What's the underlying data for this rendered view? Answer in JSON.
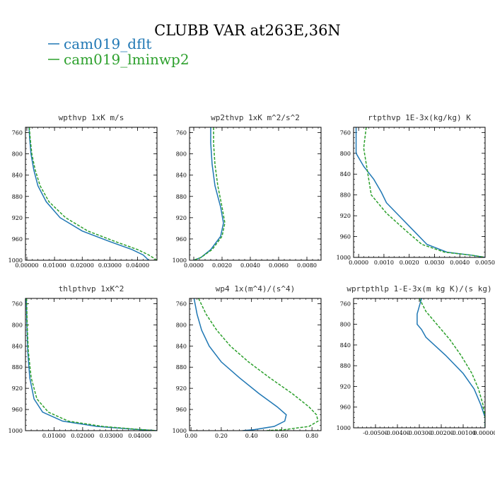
{
  "figure": {
    "title": "CLUBB VAR at263E,36N",
    "legend": [
      {
        "label": "cam019_dflt",
        "color": "#1f77b4"
      },
      {
        "label": "cam019_lminwp2",
        "color": "#2ca02c"
      }
    ]
  },
  "chart_data": [
    {
      "type": "line",
      "title": "wpthvp  1xK m/s",
      "xlim": [
        -0.0005,
        0.047
      ],
      "ylim": [
        1000,
        750
      ],
      "x_ticks": [
        0.0,
        0.01,
        0.02,
        0.03,
        0.04
      ],
      "x_tick_labels": [
        "0.00000",
        "0.01000",
        "0.02000",
        "0.03000",
        "0.04000"
      ],
      "y_ticks": [
        760,
        800,
        840,
        880,
        920,
        960,
        1000
      ],
      "y_tick_labels": [
        "760",
        "800",
        "840",
        "880",
        "920",
        "960",
        "1000"
      ],
      "series": [
        {
          "name": "cam019_dflt",
          "color": "#1f77b4",
          "dash": "",
          "points": [
            [
              0.0008,
              750
            ],
            [
              0.001,
              770
            ],
            [
              0.0015,
              800
            ],
            [
              0.0025,
              830
            ],
            [
              0.004,
              860
            ],
            [
              0.007,
              890
            ],
            [
              0.012,
              920
            ],
            [
              0.02,
              945
            ],
            [
              0.03,
              965
            ],
            [
              0.038,
              980
            ],
            [
              0.042,
              990
            ],
            [
              0.044,
              1000
            ]
          ]
        },
        {
          "name": "cam019_lminwp2",
          "color": "#2ca02c",
          "dash": "4,2",
          "points": [
            [
              0.0009,
              750
            ],
            [
              0.0012,
              770
            ],
            [
              0.0018,
              800
            ],
            [
              0.003,
              830
            ],
            [
              0.0048,
              860
            ],
            [
              0.008,
              890
            ],
            [
              0.014,
              920
            ],
            [
              0.022,
              945
            ],
            [
              0.032,
              965
            ],
            [
              0.04,
              980
            ],
            [
              0.044,
              990
            ],
            [
              0.047,
              1000
            ]
          ]
        }
      ]
    },
    {
      "type": "line",
      "title": "wp2thvp  1xK m^2/s^2",
      "xlim": [
        -0.0003,
        0.009
      ],
      "ylim": [
        1000,
        750
      ],
      "x_ticks": [
        0.0,
        0.002,
        0.004,
        0.006,
        0.008
      ],
      "x_tick_labels": [
        "0.0000",
        "0.0020",
        "0.0040",
        "0.0060",
        "0.0080"
      ],
      "y_ticks": [
        760,
        800,
        840,
        880,
        920,
        960,
        1000
      ],
      "y_tick_labels": [
        "760",
        "800",
        "840",
        "880",
        "920",
        "960",
        "1000"
      ],
      "series": [
        {
          "name": "cam019_dflt",
          "color": "#1f77b4",
          "dash": "",
          "points": [
            [
              0.0012,
              750
            ],
            [
              0.0012,
              780
            ],
            [
              0.0013,
              820
            ],
            [
              0.0015,
              860
            ],
            [
              0.0019,
              900
            ],
            [
              0.0021,
              930
            ],
            [
              0.0019,
              955
            ],
            [
              0.0012,
              980
            ],
            [
              0.0005,
              995
            ],
            [
              0.0,
              1000
            ]
          ]
        },
        {
          "name": "cam019_lminwp2",
          "color": "#2ca02c",
          "dash": "4,2",
          "points": [
            [
              0.0014,
              750
            ],
            [
              0.0014,
              780
            ],
            [
              0.0015,
              820
            ],
            [
              0.0017,
              860
            ],
            [
              0.002,
              900
            ],
            [
              0.0022,
              930
            ],
            [
              0.002,
              955
            ],
            [
              0.0013,
              980
            ],
            [
              0.0005,
              995
            ],
            [
              0.0,
              1000
            ]
          ]
        }
      ]
    },
    {
      "type": "line",
      "title": "rtpthvp  1E-3x(kg/kg) K",
      "xlim": [
        -0.0002,
        0.005
      ],
      "ylim": [
        1000,
        750
      ],
      "x_ticks": [
        0.0,
        0.001,
        0.002,
        0.003,
        0.004,
        0.005
      ],
      "x_tick_labels": [
        "0.0000",
        "0.0010",
        "0.0020",
        "0.0030",
        "0.0040",
        "0.0050"
      ],
      "y_ticks": [
        760,
        800,
        840,
        880,
        920,
        960,
        1000
      ],
      "y_tick_labels": [
        "760",
        "800",
        "840",
        "880",
        "920",
        "960",
        "1000"
      ],
      "series": [
        {
          "name": "cam019_dflt",
          "color": "#1f77b4",
          "dash": "",
          "points": [
            [
              -0.0001,
              750
            ],
            [
              -0.0001,
              800
            ],
            [
              0.0002,
              825
            ],
            [
              0.0006,
              850
            ],
            [
              0.0009,
              875
            ],
            [
              0.0011,
              895
            ],
            [
              0.0016,
              920
            ],
            [
              0.0022,
              950
            ],
            [
              0.0027,
              975
            ],
            [
              0.0035,
              990
            ],
            [
              0.0045,
              996
            ],
            [
              0.005,
              1000
            ]
          ]
        },
        {
          "name": "cam019_lminwp2",
          "color": "#2ca02c",
          "dash": "4,2",
          "points": [
            [
              0.0003,
              750
            ],
            [
              0.0002,
              790
            ],
            [
              0.0003,
              820
            ],
            [
              0.0004,
              850
            ],
            [
              0.0005,
              880
            ],
            [
              0.0011,
              915
            ],
            [
              0.0019,
              950
            ],
            [
              0.0025,
              975
            ],
            [
              0.0034,
              990
            ],
            [
              0.0045,
              996
            ],
            [
              0.005,
              1000
            ]
          ]
        }
      ]
    },
    {
      "type": "line",
      "title": "thlpthvp  1xK^2",
      "xlim": [
        0.0,
        0.046
      ],
      "ylim": [
        1000,
        750
      ],
      "x_ticks": [
        0.01,
        0.02,
        0.03,
        0.04
      ],
      "x_tick_labels": [
        "0.01000",
        "0.02000",
        "0.03000",
        "0.04000"
      ],
      "y_ticks": [
        760,
        800,
        840,
        880,
        920,
        960,
        1000
      ],
      "y_tick_labels": [
        "760",
        "800",
        "840",
        "880",
        "920",
        "960",
        "1000"
      ],
      "series": [
        {
          "name": "cam019_dflt",
          "color": "#1f77b4",
          "dash": "",
          "points": [
            [
              0.0003,
              750
            ],
            [
              0.0005,
              800
            ],
            [
              0.0008,
              850
            ],
            [
              0.0015,
              900
            ],
            [
              0.003,
              940
            ],
            [
              0.006,
              965
            ],
            [
              0.013,
              982
            ],
            [
              0.025,
              992
            ],
            [
              0.037,
              997
            ],
            [
              0.046,
              1000
            ]
          ]
        },
        {
          "name": "cam019_lminwp2",
          "color": "#2ca02c",
          "dash": "4,2",
          "points": [
            [
              0.0004,
              750
            ],
            [
              0.0006,
              800
            ],
            [
              0.001,
              850
            ],
            [
              0.002,
              900
            ],
            [
              0.004,
              940
            ],
            [
              0.008,
              965
            ],
            [
              0.015,
              982
            ],
            [
              0.027,
              992
            ],
            [
              0.038,
              997
            ],
            [
              0.046,
              1000
            ]
          ]
        }
      ]
    },
    {
      "type": "line",
      "title": "wp4  1x(m^4)/(s^4)",
      "xlim": [
        -0.01,
        0.86
      ],
      "ylim": [
        1000,
        750
      ],
      "x_ticks": [
        0.0,
        0.2,
        0.4,
        0.6,
        0.8
      ],
      "x_tick_labels": [
        "0.00",
        "0.20",
        "0.40",
        "0.60",
        "0.80"
      ],
      "y_ticks": [
        760,
        800,
        840,
        880,
        920,
        960,
        1000
      ],
      "y_tick_labels": [
        "760",
        "800",
        "840",
        "880",
        "920",
        "960",
        "1000"
      ],
      "series": [
        {
          "name": "cam019_dflt",
          "color": "#1f77b4",
          "dash": "",
          "points": [
            [
              0.02,
              750
            ],
            [
              0.04,
              780
            ],
            [
              0.07,
              810
            ],
            [
              0.12,
              840
            ],
            [
              0.2,
              870
            ],
            [
              0.32,
              900
            ],
            [
              0.45,
              930
            ],
            [
              0.57,
              955
            ],
            [
              0.63,
              970
            ],
            [
              0.62,
              982
            ],
            [
              0.55,
              992
            ],
            [
              0.42,
              998
            ],
            [
              0.34,
              1000
            ]
          ]
        },
        {
          "name": "cam019_lminwp2",
          "color": "#2ca02c",
          "dash": "4,2",
          "points": [
            [
              0.05,
              750
            ],
            [
              0.1,
              780
            ],
            [
              0.17,
              810
            ],
            [
              0.26,
              840
            ],
            [
              0.38,
              870
            ],
            [
              0.52,
              900
            ],
            [
              0.67,
              930
            ],
            [
              0.78,
              955
            ],
            [
              0.83,
              970
            ],
            [
              0.84,
              982
            ],
            [
              0.78,
              992
            ],
            [
              0.62,
              998
            ],
            [
              0.5,
              1000
            ]
          ]
        }
      ]
    },
    {
      "type": "line",
      "title": "wprtpthlp  1-E-3x(m kg K)/(s kg)",
      "xlim": [
        -0.006,
        0.0
      ],
      "ylim": [
        1000,
        750
      ],
      "x_ticks": [
        -0.005,
        -0.004,
        -0.003,
        -0.002,
        -0.001,
        0.0
      ],
      "x_tick_labels": [
        "-0.00500",
        "-0.00400",
        "-0.00300",
        "-0.00200",
        "-0.00100",
        "0.00000"
      ],
      "y_ticks": [
        760,
        800,
        840,
        880,
        920,
        960,
        1000
      ],
      "y_tick_labels": [
        "760",
        "800",
        "840",
        "880",
        "920",
        "960",
        "1000"
      ],
      "series": [
        {
          "name": "cam019_dflt",
          "color": "#1f77b4",
          "dash": "",
          "points": [
            [
              -0.0029,
              750
            ],
            [
              -0.0031,
              780
            ],
            [
              -0.0031,
              800
            ],
            [
              -0.0029,
              810
            ],
            [
              -0.0027,
              825
            ],
            [
              -0.0018,
              860
            ],
            [
              -0.001,
              895
            ],
            [
              -0.0005,
              925
            ],
            [
              -0.0002,
              955
            ],
            [
              0.0,
              980
            ],
            [
              0.0,
              1000
            ]
          ]
        },
        {
          "name": "cam019_lminwp2",
          "color": "#2ca02c",
          "dash": "4,2",
          "points": [
            [
              -0.003,
              750
            ],
            [
              -0.0027,
              775
            ],
            [
              -0.0022,
              800
            ],
            [
              -0.0016,
              830
            ],
            [
              -0.0011,
              860
            ],
            [
              -0.0006,
              895
            ],
            [
              -0.0003,
              925
            ],
            [
              -0.0001,
              955
            ],
            [
              0.0,
              980
            ],
            [
              0.0,
              1000
            ]
          ]
        }
      ]
    }
  ]
}
